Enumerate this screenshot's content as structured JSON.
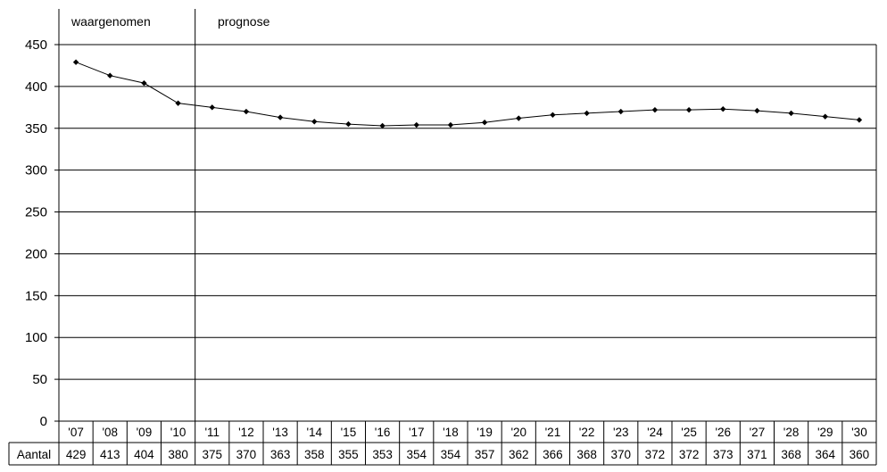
{
  "chart_data": {
    "type": "line",
    "phases": {
      "observed": "waargenomen",
      "forecast": "prognose"
    },
    "categories": [
      "'07",
      "'08",
      "'09",
      "'10",
      "'11",
      "'12",
      "'13",
      "'14",
      "'15",
      "'16",
      "'17",
      "'18",
      "'19",
      "'20",
      "'21",
      "'22",
      "'23",
      "'24",
      "'25",
      "'26",
      "'27",
      "'28",
      "'29",
      "'30"
    ],
    "series": [
      {
        "name": "Aantal",
        "values": [
          429,
          413,
          404,
          380,
          375,
          370,
          363,
          358,
          355,
          353,
          354,
          354,
          357,
          362,
          366,
          368,
          370,
          372,
          372,
          373,
          371,
          368,
          364,
          360
        ]
      }
    ],
    "observed_count": 4,
    "ylim": [
      0,
      450
    ],
    "yticks": [
      0,
      50,
      100,
      150,
      200,
      250,
      300,
      350,
      400,
      450
    ],
    "grid": true,
    "legend": "none",
    "table_row_label": "Aantal",
    "colors": {
      "line": "#000000",
      "grid": "#000000",
      "background": "#ffffff"
    }
  }
}
